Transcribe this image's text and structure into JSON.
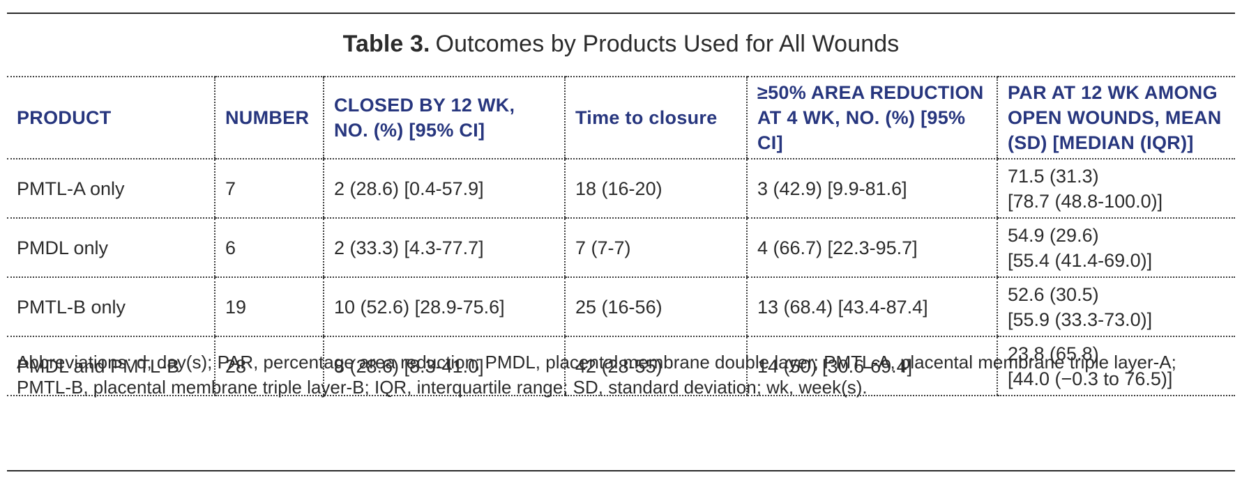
{
  "table": {
    "label": "Table 3.",
    "title": "Outcomes by Products Used for All Wounds",
    "headers": {
      "product": "PRODUCT",
      "number": "NUMBER",
      "closed": "CLOSED BY 12 WK, NO. (%) [95% CI]",
      "time": "Time to closure",
      "reduction": "≥50% AREA REDUCTION AT 4 WK, NO. (%) [95% CI]",
      "par": "PAR AT 12 WK AMONG OPEN WOUNDS, MEAN (SD) [MEDIAN (IQR)]"
    },
    "rows": [
      {
        "product": "PMTL-A only",
        "number": "7",
        "closed": "2 (28.6) [0.4-57.9]",
        "time": "18 (16-20)",
        "reduction": "3 (42.9) [9.9-81.6]",
        "par_mean": "71.5 (31.3)",
        "par_median": "[78.7 (48.8-100.0)]"
      },
      {
        "product": "PMDL only",
        "number": "6",
        "closed": "2 (33.3) [4.3-77.7]",
        "time": "7 (7-7)",
        "reduction": "4 (66.7) [22.3-95.7]",
        "par_mean": "54.9 (29.6)",
        "par_median": "[55.4 (41.4-69.0)]"
      },
      {
        "product": "PMTL-B only",
        "number": "19",
        "closed": "10 (52.6) [28.9-75.6]",
        "time": "25 (16-56)",
        "reduction": "13 (68.4) [43.4-87.4]",
        "par_mean": "52.6 (30.5)",
        "par_median": "[55.9 (33.3-73.0)]"
      },
      {
        "product": "PMDL and PMTL-B",
        "number": "28",
        "closed": "8 (28.6) [8.3-41.0]",
        "time": "42 (28-55)",
        "reduction": "14 (50) [30.6-69.4]",
        "par_mean": "23.8 (65.8)",
        "par_median": "[44.0 (−0.3 to 76.5)]"
      }
    ],
    "footnote": "Abbreviations: d, day(s); PAR, percentage area reduction; PMDL, placental membrane double layer; PMTL-A, placental membrane triple layer-A; PMTL-B, placental membrane triple layer-B; IQR, interquartile range; SD, standard deviation; wk, week(s)."
  },
  "colors": {
    "header_text": "#27367e",
    "body_text": "#2b2b2b",
    "rules": "#2a2a2a"
  }
}
